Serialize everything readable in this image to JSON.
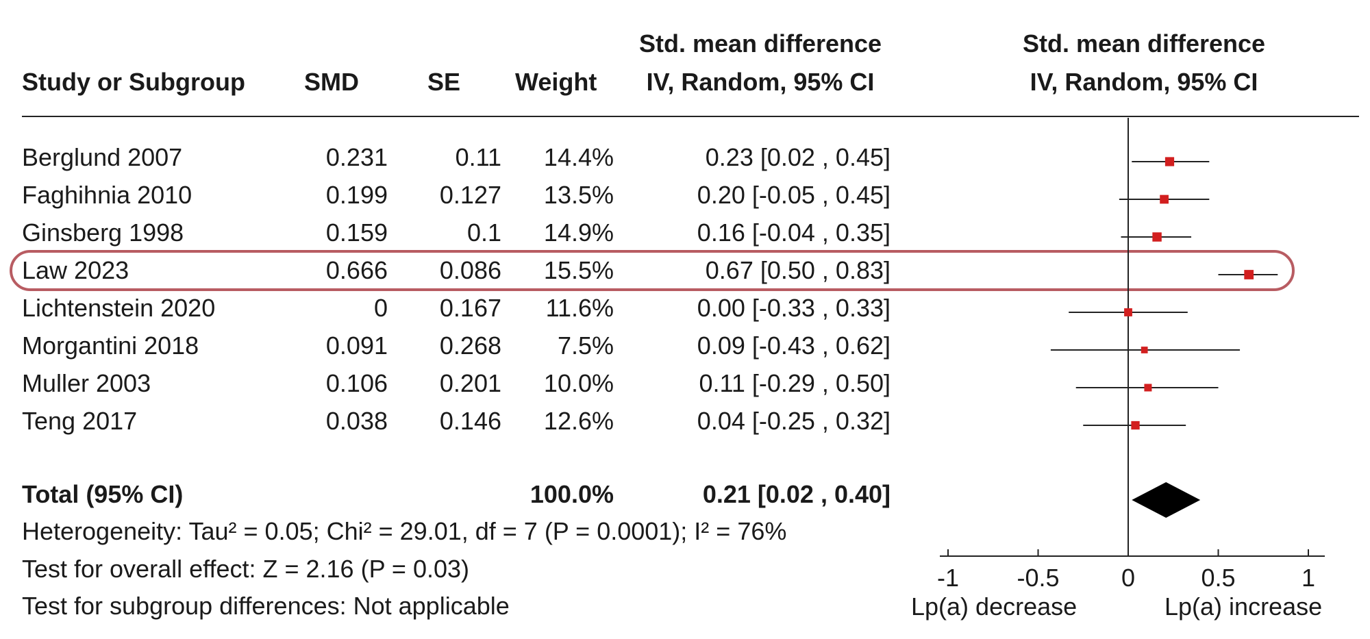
{
  "headers": {
    "study": "Study or Subgroup",
    "smd": "SMD",
    "se": "SE",
    "weight": "Weight",
    "ci_line1": "Std. mean difference",
    "ci_line2": "IV, Random, 95% CI",
    "plot_line1": "Std. mean difference",
    "plot_line2": "IV, Random, 95% CI"
  },
  "studies": [
    {
      "name": "Berglund 2007",
      "smd": "0.231",
      "se": "0.11",
      "weight": "14.4%",
      "ci_text": "0.23 [0.02 , 0.45]"
    },
    {
      "name": "Faghihnia 2010",
      "smd": "0.199",
      "se": "0.127",
      "weight": "13.5%",
      "ci_text": "0.20 [-0.05 , 0.45]"
    },
    {
      "name": "Ginsberg 1998",
      "smd": "0.159",
      "se": "0.1",
      "weight": "14.9%",
      "ci_text": "0.16 [-0.04 , 0.35]"
    },
    {
      "name": "Law 2023",
      "smd": "0.666",
      "se": "0.086",
      "weight": "15.5%",
      "ci_text": "0.67 [0.50 , 0.83]"
    },
    {
      "name": "Lichtenstein 2020",
      "smd": "0",
      "se": "0.167",
      "weight": "11.6%",
      "ci_text": "0.00 [-0.33 , 0.33]"
    },
    {
      "name": "Morgantini 2018",
      "smd": "0.091",
      "se": "0.268",
      "weight": "7.5%",
      "ci_text": "0.09 [-0.43 , 0.62]"
    },
    {
      "name": "Muller 2003",
      "smd": "0.106",
      "se": "0.201",
      "weight": "10.0%",
      "ci_text": "0.11 [-0.29 , 0.50]"
    },
    {
      "name": "Teng 2017",
      "smd": "0.038",
      "se": "0.146",
      "weight": "12.6%",
      "ci_text": "0.04 [-0.25 , 0.32]"
    }
  ],
  "total": {
    "label": "Total (95% CI)",
    "weight": "100.0%",
    "ci_text": "0.21 [0.02 , 0.40]"
  },
  "footer": {
    "heterogeneity": "Heterogeneity: Tau² = 0.05; Chi² = 29.01, df = 7 (P = 0.0001); I² = 76%",
    "overall_effect": "Test for overall effect: Z = 2.16 (P = 0.03)",
    "subgroup": "Test for subgroup differences: Not applicable"
  },
  "axis": {
    "ticks": [
      "-1",
      "-0.5",
      "0",
      "0.5",
      "1"
    ],
    "left_label": "Lp(a) decrease",
    "right_label": "Lp(a) increase"
  },
  "colors": {
    "marker": "#d21f1f",
    "line": "#222222",
    "diamond": "#000000",
    "highlight": "#b85c62"
  },
  "chart_data": {
    "type": "forest",
    "xlim": [
      -1,
      1
    ],
    "xticks": [
      -1,
      -0.5,
      0,
      0.5,
      1
    ],
    "highlighted_study": "Law 2023",
    "studies": [
      {
        "name": "Berglund 2007",
        "est": 0.23,
        "lo": 0.02,
        "hi": 0.45,
        "weight": 14.4
      },
      {
        "name": "Faghihnia 2010",
        "est": 0.2,
        "lo": -0.05,
        "hi": 0.45,
        "weight": 13.5
      },
      {
        "name": "Ginsberg 1998",
        "est": 0.16,
        "lo": -0.04,
        "hi": 0.35,
        "weight": 14.9
      },
      {
        "name": "Law 2023",
        "est": 0.67,
        "lo": 0.5,
        "hi": 0.83,
        "weight": 15.5
      },
      {
        "name": "Lichtenstein 2020",
        "est": 0.0,
        "lo": -0.33,
        "hi": 0.33,
        "weight": 11.6
      },
      {
        "name": "Morgantini 2018",
        "est": 0.09,
        "lo": -0.43,
        "hi": 0.62,
        "weight": 7.5
      },
      {
        "name": "Muller 2003",
        "est": 0.11,
        "lo": -0.29,
        "hi": 0.5,
        "weight": 10.0
      },
      {
        "name": "Teng 2017",
        "est": 0.04,
        "lo": -0.25,
        "hi": 0.32,
        "weight": 12.6
      }
    ],
    "pooled": {
      "est": 0.21,
      "lo": 0.02,
      "hi": 0.4
    }
  }
}
